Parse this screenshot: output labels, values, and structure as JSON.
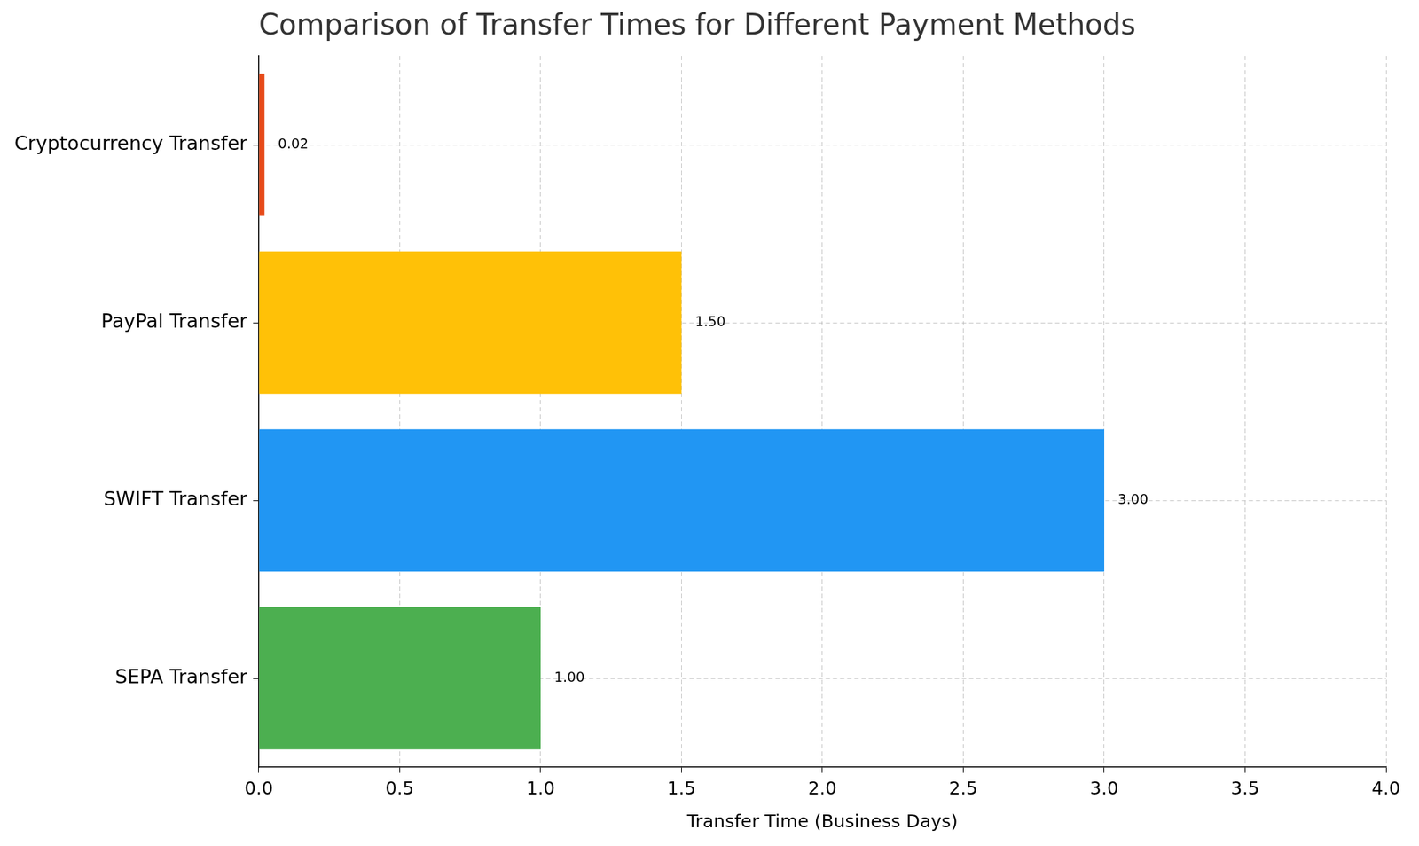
{
  "chart_data": {
    "type": "bar",
    "orientation": "horizontal",
    "title": "Comparison of Transfer Times for Different Payment Methods",
    "x_label": "Transfer Time (Business Days)",
    "categories": [
      "Cryptocurrency Transfer",
      "PayPal Transfer",
      "SWIFT Transfer",
      "SEPA Transfer"
    ],
    "values": [
      0.02,
      1.5,
      3.0,
      1.0
    ],
    "value_labels": [
      "0.02",
      "1.50",
      "3.00",
      "1.00"
    ],
    "colors": [
      "#E64A19",
      "#FFC107",
      "#2196F3",
      "#4CAF50"
    ],
    "xlim": [
      0,
      4
    ],
    "xticks": [
      {
        "value": 0,
        "label": "0.0"
      },
      {
        "value": 0.5,
        "label": "0.5"
      },
      {
        "value": 1,
        "label": "1.0"
      },
      {
        "value": 1.5,
        "label": "1.5"
      },
      {
        "value": 2,
        "label": "2.0"
      },
      {
        "value": 2.5,
        "label": "2.5"
      },
      {
        "value": 3,
        "label": "3.0"
      },
      {
        "value": 3.5,
        "label": "3.5"
      },
      {
        "value": 4,
        "label": "4.0"
      }
    ],
    "grid": true,
    "data_labels": true
  }
}
